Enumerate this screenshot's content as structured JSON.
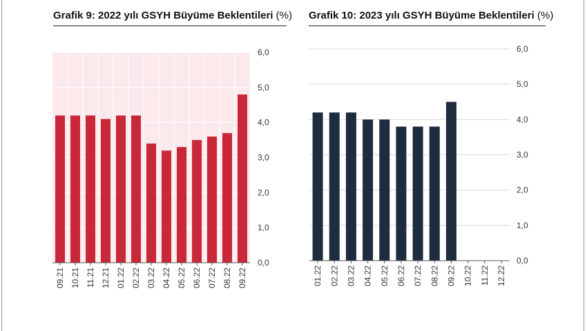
{
  "charts": [
    {
      "title": "Grafik 9: 2022 yılı GSYH Büyüme Beklentileri",
      "unit": "(%)"
    },
    {
      "title": "Grafik 10: 2023 yılı GSYH Büyüme Beklentileri",
      "unit": "(%)"
    }
  ],
  "chart_data": [
    {
      "type": "bar",
      "title": "Grafik 9: 2022 yılı GSYH Büyüme Beklentileri (%)",
      "categories": [
        "09.21",
        "10.21",
        "11.21",
        "12.21",
        "01.22",
        "02.22",
        "03.22",
        "04.22",
        "05.22",
        "06.22",
        "07.22",
        "08.22",
        "09.22"
      ],
      "values": [
        4.2,
        4.2,
        4.2,
        4.1,
        4.2,
        4.2,
        3.4,
        3.2,
        3.3,
        3.5,
        3.6,
        3.7,
        4.8
      ],
      "yticks": [
        "0,0",
        "1,0",
        "2,0",
        "3,0",
        "4,0",
        "5,0",
        "6,0"
      ],
      "ylim": [
        0,
        6
      ],
      "bar_color": "#c9273a",
      "grid": true
    },
    {
      "type": "bar",
      "title": "Grafik 10: 2023 yılı GSYH Büyüme Beklentileri (%)",
      "categories": [
        "01.22",
        "02.22",
        "03.22",
        "04.22",
        "05.22",
        "06.22",
        "07.22",
        "08.22",
        "09.22",
        "10.22",
        "11.22",
        "12.22"
      ],
      "values": [
        4.2,
        4.2,
        4.2,
        4.0,
        4.0,
        3.8,
        3.8,
        3.8,
        4.5,
        null,
        null,
        null
      ],
      "yticks": [
        "0,0",
        "1,0",
        "2,0",
        "3,0",
        "4,0",
        "5,0",
        "6,0"
      ],
      "ylim": [
        0,
        6
      ],
      "bar_color": "#1f2c3f",
      "grid": true
    }
  ]
}
